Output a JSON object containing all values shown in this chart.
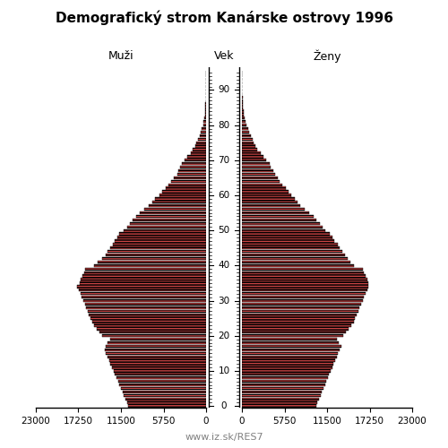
{
  "title": "Demografický strom Kanárske ostrovy 1996",
  "label_left": "Muži",
  "label_center": "Vek",
  "label_right": "Ženy",
  "footer": "www.iz.sk/RES7",
  "xlim": 23000,
  "bar_color": "#cc4444",
  "bar_edge_color": "#000000",
  "ages": [
    0,
    1,
    2,
    3,
    4,
    5,
    6,
    7,
    8,
    9,
    10,
    11,
    12,
    13,
    14,
    15,
    16,
    17,
    18,
    19,
    20,
    21,
    22,
    23,
    24,
    25,
    26,
    27,
    28,
    29,
    30,
    31,
    32,
    33,
    34,
    35,
    36,
    37,
    38,
    39,
    40,
    41,
    42,
    43,
    44,
    45,
    46,
    47,
    48,
    49,
    50,
    51,
    52,
    53,
    54,
    55,
    56,
    57,
    58,
    59,
    60,
    61,
    62,
    63,
    64,
    65,
    66,
    67,
    68,
    69,
    70,
    71,
    72,
    73,
    74,
    75,
    76,
    77,
    78,
    79,
    80,
    81,
    82,
    83,
    84,
    85,
    86,
    87,
    88,
    89,
    90,
    91,
    92,
    93,
    94,
    95
  ],
  "males": [
    10500,
    10700,
    10900,
    11100,
    11300,
    11500,
    11700,
    11900,
    12100,
    12300,
    12500,
    12700,
    12900,
    13100,
    13300,
    13500,
    13700,
    13600,
    13300,
    13000,
    14000,
    14400,
    14800,
    15100,
    15400,
    15600,
    15800,
    16000,
    16200,
    16400,
    16600,
    16800,
    17000,
    17200,
    17400,
    17100,
    16900,
    16700,
    16500,
    16300,
    15100,
    14600,
    14100,
    13600,
    13300,
    12900,
    12600,
    12300,
    12000,
    11700,
    11100,
    10600,
    10300,
    9900,
    9500,
    8900,
    8300,
    7700,
    7300,
    6900,
    6300,
    5900,
    5500,
    5100,
    4700,
    4300,
    3900,
    3700,
    3500,
    3300,
    2900,
    2500,
    2100,
    1800,
    1500,
    1300,
    1100,
    900,
    700,
    550,
    420,
    320,
    240,
    180,
    130,
    95,
    72,
    52,
    37,
    26,
    16,
    11,
    7,
    4,
    2,
    1
  ],
  "females": [
    10000,
    10200,
    10400,
    10600,
    10800,
    11000,
    11200,
    11400,
    11600,
    11800,
    12000,
    12200,
    12400,
    12600,
    12800,
    13000,
    13200,
    13400,
    13100,
    12800,
    13700,
    14000,
    14400,
    14800,
    15100,
    15300,
    15500,
    15700,
    15900,
    16100,
    16300,
    16500,
    16700,
    16900,
    17100,
    17100,
    16900,
    16700,
    16500,
    16300,
    15100,
    14700,
    14300,
    13900,
    13600,
    13200,
    12900,
    12500,
    12200,
    11900,
    11300,
    10900,
    10500,
    10100,
    9700,
    9100,
    8500,
    7900,
    7500,
    7100,
    6700,
    6300,
    5900,
    5500,
    5100,
    4800,
    4500,
    4200,
    3900,
    3700,
    3300,
    2900,
    2500,
    2100,
    1800,
    1600,
    1400,
    1200,
    1000,
    800,
    620,
    480,
    370,
    280,
    210,
    165,
    125,
    92,
    65,
    45,
    28,
    18,
    11,
    7,
    3,
    1
  ]
}
